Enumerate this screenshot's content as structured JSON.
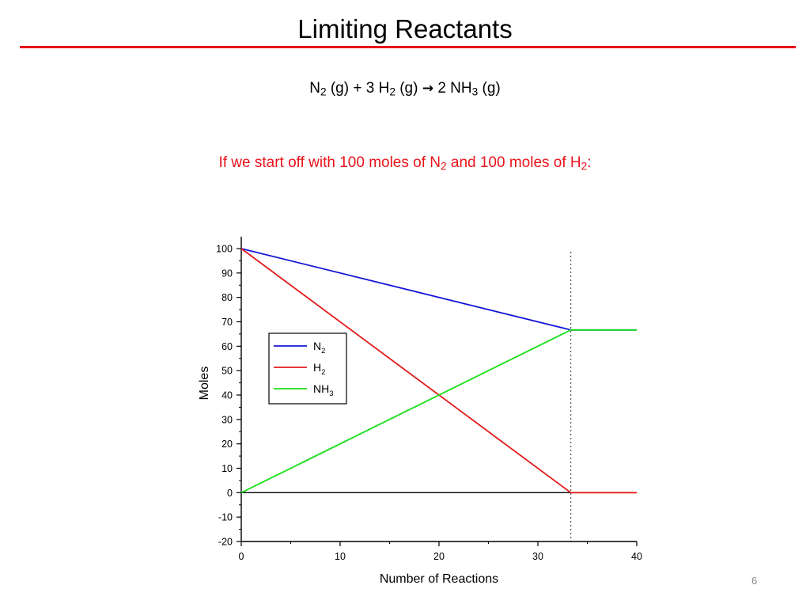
{
  "slide": {
    "title": "Limiting Reactants",
    "equation": {
      "n2": "N",
      "n2_sub": "2",
      "n2_state": "(g) + 3 H",
      "h2_sub": "2",
      "h2_state": "(g)",
      "arrow": "→",
      "product": "2 NH",
      "nh3_sub": "3",
      "product_state": "(g)"
    },
    "subtitle": {
      "part1": "If we start off with 100 moles of N",
      "sub1": "2",
      "part2": " and 100 moles of H",
      "sub2": "2",
      "part3": ":"
    },
    "page_number": "6",
    "accent_color": "#e8141b"
  },
  "chart_data": {
    "type": "line",
    "xlabel": "Number of Reactions",
    "ylabel": "Moles",
    "xlim": [
      0,
      40
    ],
    "ylim": [
      -20,
      100
    ],
    "xticks": [
      0,
      10,
      20,
      30,
      40
    ],
    "yticks": [
      -20,
      -10,
      0,
      10,
      20,
      30,
      40,
      50,
      60,
      70,
      80,
      90,
      100
    ],
    "reference_lines": [
      {
        "orientation": "horizontal",
        "value": 0,
        "style": "solid",
        "color": "#000000"
      },
      {
        "orientation": "vertical",
        "value": 33.33,
        "style": "dotted",
        "color": "#555555"
      }
    ],
    "legend_position": "upper-left",
    "series": [
      {
        "name": "N",
        "name_sub": "2",
        "color": "#1515d6",
        "x": [
          0,
          33.33,
          40
        ],
        "y": [
          100,
          66.67,
          66.67
        ]
      },
      {
        "name": "H",
        "name_sub": "2",
        "color": "#e01b1b",
        "x": [
          0,
          33.33,
          40
        ],
        "y": [
          100,
          0,
          0
        ]
      },
      {
        "name": "NH",
        "name_sub": "3",
        "color": "#19df19",
        "x": [
          0,
          33.33,
          40
        ],
        "y": [
          0,
          66.67,
          66.67
        ]
      }
    ]
  }
}
